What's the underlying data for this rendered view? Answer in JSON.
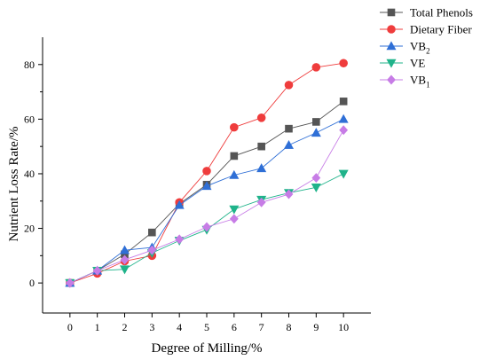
{
  "chart_data": {
    "type": "line",
    "xlabel": "Degree of Milling/%",
    "ylabel": "Nutrient Loss Rate/%",
    "x": [
      0,
      1,
      2,
      3,
      4,
      5,
      6,
      7,
      8,
      9,
      10
    ],
    "xlim": [
      -1,
      11
    ],
    "ylim": [
      -11,
      90
    ],
    "xticks": [
      "0",
      "1",
      "2",
      "3",
      "4",
      "5",
      "6",
      "7",
      "8",
      "9",
      "10"
    ],
    "yticks": [
      0,
      20,
      40,
      60,
      80
    ],
    "grid": false,
    "legend_position": "top-right",
    "series": [
      {
        "name": "Total Phenols",
        "label_main": "Total Phenols",
        "label_sub": "",
        "color": "#555555",
        "marker": "square",
        "values": [
          0,
          4.5,
          10.5,
          18.5,
          29,
          36,
          46.5,
          50,
          56.5,
          59,
          66.5
        ]
      },
      {
        "name": "Dietary Fiber",
        "label_main": "Dietary Fiber",
        "label_sub": "",
        "color": "#ef3c3c",
        "marker": "circle",
        "values": [
          0,
          3.5,
          8,
          10,
          29.5,
          41,
          57,
          60.5,
          72.5,
          79,
          80.5
        ]
      },
      {
        "name": "VB2",
        "label_main": "VB",
        "label_sub": "2",
        "color": "#2f6fd6",
        "marker": "triangle-up",
        "values": [
          0,
          4.5,
          12,
          13,
          28.5,
          35.5,
          39.5,
          42,
          50.5,
          55,
          60
        ]
      },
      {
        "name": "VE",
        "label_main": "VE",
        "label_sub": "",
        "color": "#1fb38a",
        "marker": "triangle-down",
        "values": [
          0,
          4.5,
          5,
          11,
          15.5,
          19.5,
          27,
          30.5,
          33,
          35,
          40
        ]
      },
      {
        "name": "VB1",
        "label_main": "VB",
        "label_sub": "1",
        "color": "#c77ce6",
        "marker": "diamond",
        "values": [
          0,
          4.5,
          8.5,
          12,
          16,
          20.5,
          23.5,
          29.5,
          32.5,
          38.5,
          56
        ]
      }
    ]
  }
}
